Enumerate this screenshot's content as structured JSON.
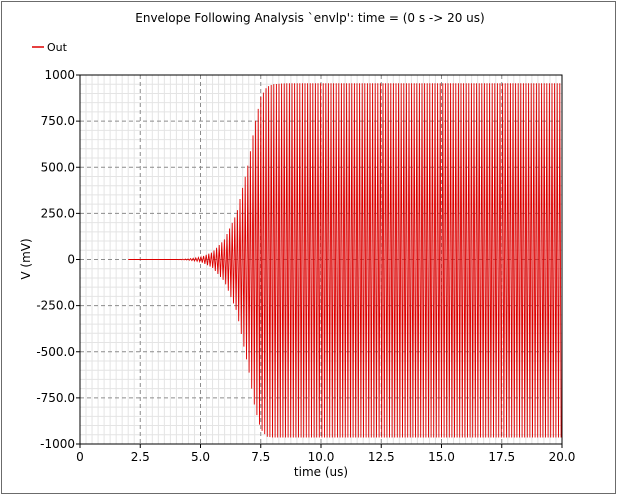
{
  "chart_data": {
    "type": "line",
    "title": "Envelope Following Analysis `envlp': time = (0 s -> 20 us)",
    "xlabel": "time (us)",
    "ylabel": "V (mV)",
    "xlim": [
      0,
      20
    ],
    "ylim": [
      -1000,
      1000
    ],
    "x_ticks": [
      0,
      2.5,
      5.0,
      7.5,
      10.0,
      12.5,
      15.0,
      17.5,
      20.0
    ],
    "x_tick_labels": [
      "0",
      "2.5",
      "5.0",
      "7.5",
      "10.0",
      "12.5",
      "15.0",
      "17.5",
      "20.0"
    ],
    "y_ticks": [
      1000,
      750,
      500,
      250,
      0,
      -250,
      -500,
      -750,
      -1000
    ],
    "y_tick_labels": [
      "1000",
      "750.0",
      "500.0",
      "250.0",
      "0",
      "-250.0",
      "-500.0",
      "-750.0",
      "-1000"
    ],
    "grid": true,
    "legend_position": "top-left",
    "series": [
      {
        "name": "Out",
        "color": "#dd0000",
        "signal_start_x": 2.0,
        "envelope_x": [
          2.0,
          4.0,
          4.5,
          5.0,
          5.5,
          6.0,
          6.5,
          7.0,
          7.25,
          7.5,
          7.75,
          8.0,
          8.5,
          10.0,
          20.0
        ],
        "envelope_upper": [
          0,
          0,
          3,
          12,
          40,
          110,
          250,
          530,
          730,
          880,
          935,
          950,
          955,
          955,
          955
        ],
        "envelope_lower": [
          0,
          0,
          -3,
          -12,
          -45,
          -120,
          -280,
          -600,
          -800,
          -920,
          -960,
          -965,
          -965,
          -965,
          -965
        ]
      }
    ]
  }
}
